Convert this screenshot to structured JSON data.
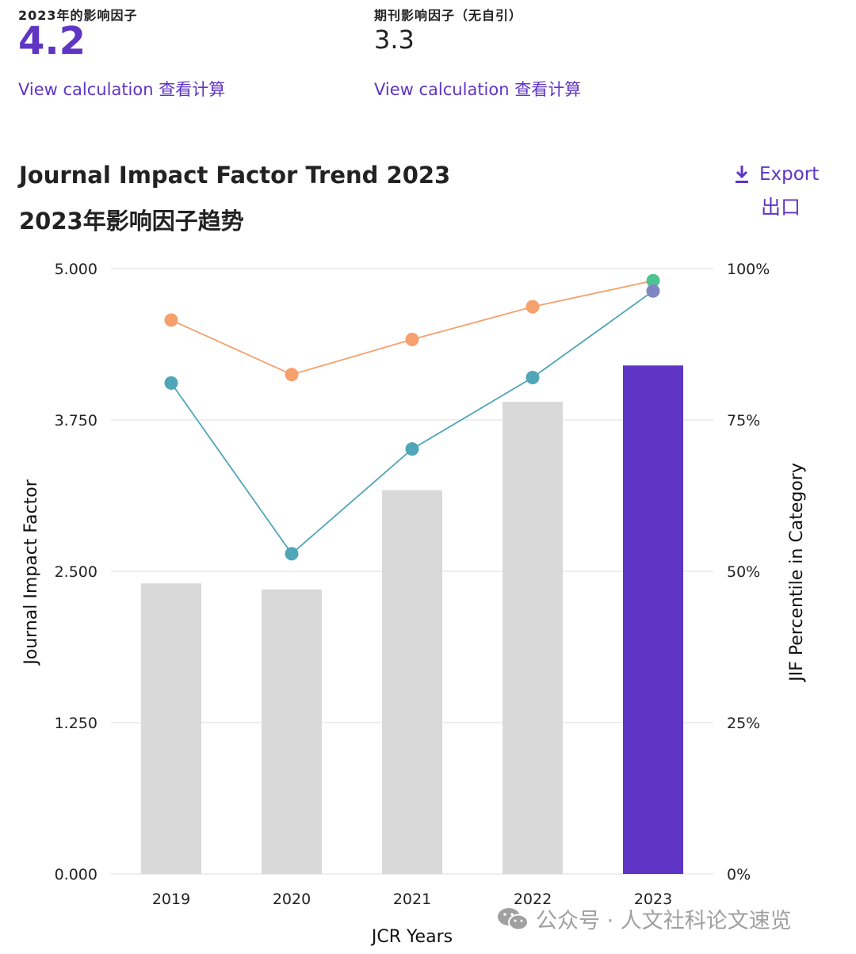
{
  "metrics": {
    "jif_label": "2023年的影响因子",
    "jif_value": "4.2",
    "jif_no_self_label": "期刊影响因子（无自引）",
    "jif_no_self_value": "3.3",
    "view_calc_1": "View calculation 查看计算",
    "view_calc_2": "View calculation 查看计算"
  },
  "chart_header": {
    "title_en": "Journal Impact Factor Trend 2023",
    "title_zh": "2023年影响因子趋势",
    "export_label": "Export",
    "export_label_zh": "出口",
    "export_icon": "download-icon"
  },
  "watermark": {
    "text": "公众号 · 人文社科论文速览",
    "icon": "wechat-icon"
  },
  "chart_data": {
    "type": "bar",
    "categories": [
      "2019",
      "2020",
      "2021",
      "2022",
      "2023"
    ],
    "xlabel": "JCR Years",
    "ylabel": "Journal Impact Factor",
    "y2label": "JIF Percentile in Category",
    "ylim": [
      0,
      5
    ],
    "y2lim": [
      0,
      100
    ],
    "yticks": [
      "0.000",
      "1.250",
      "2.500",
      "3.750",
      "5.000"
    ],
    "y2ticks": [
      "0%",
      "25%",
      "50%",
      "75%",
      "100%"
    ],
    "grid": true,
    "bars": {
      "values": [
        2.4,
        2.35,
        3.17,
        3.9,
        4.2
      ],
      "colors": [
        "#d9d9d9",
        "#d9d9d9",
        "#d9d9d9",
        "#d9d9d9",
        "#5e35c4"
      ]
    },
    "series": [
      {
        "axis": "right",
        "values": [
          91.5,
          82.5,
          88.3,
          93.7,
          98
        ],
        "color": "#f5a06d",
        "last_point_color": "#4ec48f"
      },
      {
        "axis": "right",
        "values": [
          81.1,
          52.9,
          70.2,
          82,
          96.3
        ],
        "color": "#4fa6b8",
        "last_point_color": "#7f86c4"
      }
    ]
  }
}
